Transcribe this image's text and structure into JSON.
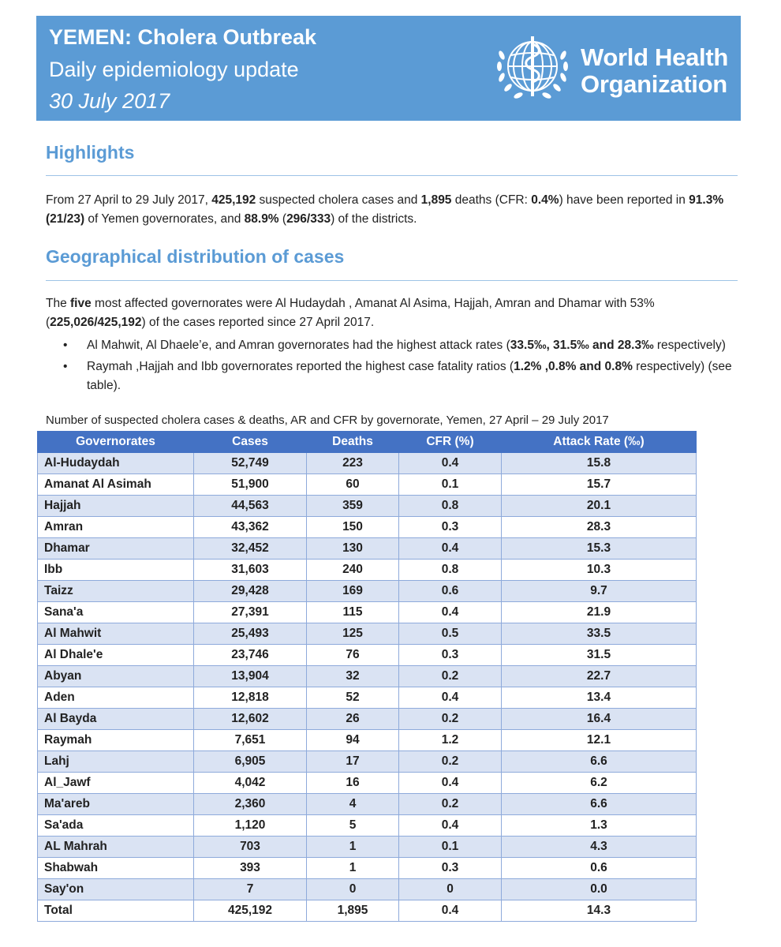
{
  "banner": {
    "title": "YEMEN: Cholera Outbreak",
    "subtitle": "Daily epidemiology update",
    "date": "30 July 2017",
    "org_line1": "World Health",
    "org_line2": "Organization"
  },
  "highlights": {
    "heading": "Highlights",
    "t1": "From 27 April to 29 July 2017, ",
    "cases": "425,192",
    "t2": " suspected cholera cases and ",
    "deaths": "1,895",
    "t3": " deaths (CFR: ",
    "cfr": "0.4%",
    "t4": ") have been reported in ",
    "gov_pct": "91.3% (21/23)",
    "t5": " of Yemen governorates, and ",
    "dist_pct": "88.9%",
    "t6": " (",
    "dist_ratio": "296/333",
    "t7": ") of the districts."
  },
  "geo": {
    "heading": "Geographical distribution of cases",
    "t1": "The ",
    "five": "five",
    "t2": " most affected governorates were Al Hudaydah , Amanat Al Asima, Hajjah, Amran and Dhamar with 53% (",
    "ratio": "225,026/425,192",
    "t3": ") of the cases reported since 27 April 2017.",
    "bullet1_t1": "Al Mahwit, Al Dhaele’e, and Amran governorates had the highest attack rates (",
    "bullet1_b": "33.5‰, 31.5‰ and 28.3‰",
    "bullet1_t2": " respectively)",
    "bullet2_t1": "Raymah ,Hajjah and Ibb governorates reported the highest case fatality ratios (",
    "bullet2_b": "1.2% ,0.8% and 0.8%",
    "bullet2_t2": " respectively) (see table)."
  },
  "table": {
    "caption": "Number of suspected cholera cases & deaths, AR and CFR by governorate, Yemen, 27 April – 29 July 2017",
    "headers": [
      "Governorates",
      "Cases",
      "Deaths",
      "CFR (%)",
      "Attack Rate (‰)"
    ],
    "rows": [
      [
        "Al-Hudaydah",
        "52,749",
        "223",
        "0.4",
        "15.8"
      ],
      [
        "Amanat Al Asimah",
        "51,900",
        "60",
        "0.1",
        "15.7"
      ],
      [
        "Hajjah",
        "44,563",
        "359",
        "0.8",
        "20.1"
      ],
      [
        "Amran",
        "43,362",
        "150",
        "0.3",
        "28.3"
      ],
      [
        "Dhamar",
        "32,452",
        "130",
        "0.4",
        "15.3"
      ],
      [
        "Ibb",
        "31,603",
        "240",
        "0.8",
        "10.3"
      ],
      [
        "Taizz",
        "29,428",
        "169",
        "0.6",
        "9.7"
      ],
      [
        "Sana'a",
        "27,391",
        "115",
        "0.4",
        "21.9"
      ],
      [
        "Al Mahwit",
        "25,493",
        "125",
        "0.5",
        "33.5"
      ],
      [
        "Al Dhale'e",
        "23,746",
        "76",
        "0.3",
        "31.5"
      ],
      [
        "Abyan",
        "13,904",
        "32",
        "0.2",
        "22.7"
      ],
      [
        "Aden",
        "12,818",
        "52",
        "0.4",
        "13.4"
      ],
      [
        "Al Bayda",
        "12,602",
        "26",
        "0.2",
        "16.4"
      ],
      [
        "Raymah",
        "7,651",
        "94",
        "1.2",
        "12.1"
      ],
      [
        "Lahj",
        "6,905",
        "17",
        "0.2",
        "6.6"
      ],
      [
        "Al_Jawf",
        "4,042",
        "16",
        "0.4",
        "6.2"
      ],
      [
        "Ma'areb",
        "2,360",
        "4",
        "0.2",
        "6.6"
      ],
      [
        "Sa'ada",
        "1,120",
        "5",
        "0.4",
        "1.3"
      ],
      [
        "AL Mahrah",
        "703",
        "1",
        "0.1",
        "4.3"
      ],
      [
        "Shabwah",
        "393",
        "1",
        "0.3",
        "0.6"
      ],
      [
        "Say'on",
        "7",
        "0",
        "0",
        "0.0"
      ],
      [
        "Total",
        "425,192",
        "1,895",
        "0.4",
        "14.3"
      ]
    ]
  }
}
